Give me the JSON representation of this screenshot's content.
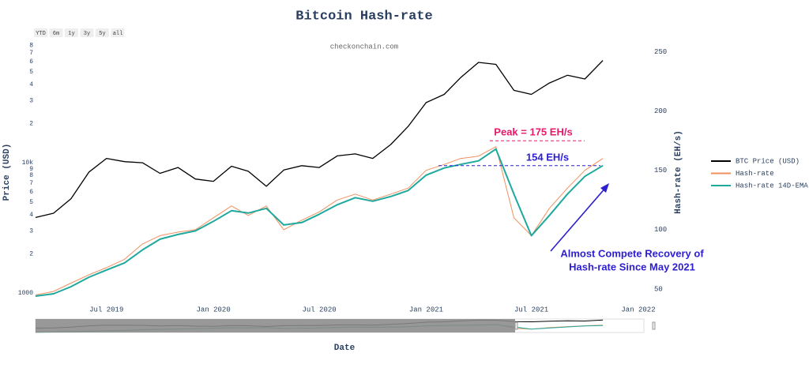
{
  "chart_data": {
    "type": "line",
    "title": "Bitcoin Hash-rate",
    "subtitle": "checkonchain.com",
    "range_buttons": [
      "YTD",
      "6m",
      "1y",
      "3y",
      "5y",
      "all"
    ],
    "x_label": "Date",
    "y_label": "Price (USD)",
    "y2_label": "Hash-rate (EH/s)",
    "ylog": true,
    "grid": false,
    "legend": "right",
    "x": [
      "2019-03",
      "2019-04",
      "2019-05",
      "2019-06",
      "2019-07",
      "2019-08",
      "2019-09",
      "2019-10",
      "2019-11",
      "2019-12",
      "2020-01",
      "2020-02",
      "2020-03",
      "2020-04",
      "2020-05",
      "2020-06",
      "2020-07",
      "2020-08",
      "2020-09",
      "2020-10",
      "2020-11",
      "2020-12",
      "2021-01",
      "2021-02",
      "2021-03",
      "2021-04",
      "2021-05",
      "2021-06",
      "2021-07",
      "2021-08",
      "2021-09",
      "2021-10",
      "2021-11"
    ],
    "series": [
      {
        "name": "BTC Price (USD)",
        "color": "#000000",
        "values": [
          3800,
          4100,
          5300,
          8500,
          10800,
          10200,
          10000,
          8300,
          9200,
          7500,
          7200,
          9400,
          8600,
          6600,
          8800,
          9500,
          9200,
          11300,
          11700,
          10800,
          13800,
          19000,
          29000,
          33500,
          45000,
          59000,
          57000,
          36000,
          33500,
          41000,
          47000,
          44000,
          61000
        ]
      },
      {
        "name": "Hash-rate",
        "color": "#f0905e",
        "axis": "y2",
        "values": [
          45,
          48,
          55,
          62,
          68,
          75,
          88,
          95,
          98,
          100,
          110,
          120,
          112,
          120,
          100,
          108,
          115,
          125,
          130,
          125,
          130,
          135,
          150,
          155,
          160,
          162,
          170,
          110,
          95,
          118,
          135,
          150,
          160
        ]
      },
      {
        "name": "Hash-rate 14D-EMA",
        "color": "#1fa99d",
        "axis": "y2",
        "values": [
          44,
          46,
          52,
          60,
          66,
          72,
          83,
          92,
          96,
          99,
          107,
          116,
          114,
          118,
          104,
          106,
          113,
          121,
          127,
          124,
          128,
          133,
          146,
          152,
          155,
          158,
          168,
          130,
          95,
          112,
          130,
          145,
          154
        ]
      }
    ],
    "xlim": [
      "2019-03",
      "2022-01"
    ],
    "xticks": [
      {
        "value": "2019-07",
        "label": "Jul 2019"
      },
      {
        "value": "2020-01",
        "label": "Jan 2020"
      },
      {
        "value": "2020-07",
        "label": "Jul 2020"
      },
      {
        "value": "2021-01",
        "label": "Jan 2021"
      },
      {
        "value": "2021-07",
        "label": "Jul 2021"
      },
      {
        "value": "2022-01",
        "label": "Jan 2022"
      }
    ],
    "ylim": [
      870,
      86000
    ],
    "yticks": [
      1000,
      {
        "value": 2000,
        "label": "2"
      },
      {
        "value": 3000,
        "label": "3"
      },
      {
        "value": 4000,
        "label": "4"
      },
      {
        "value": 5000,
        "label": "5"
      },
      {
        "value": 6000,
        "label": "6"
      },
      {
        "value": 7000,
        "label": "7"
      },
      {
        "value": 8000,
        "label": "8"
      },
      {
        "value": 9000,
        "label": "9"
      },
      {
        "value": 10000,
        "label": "10k"
      },
      {
        "value": 20000,
        "label": "2"
      },
      {
        "value": 30000,
        "label": "3"
      },
      {
        "value": 40000,
        "label": "4"
      },
      {
        "value": 50000,
        "label": "5"
      },
      {
        "value": 60000,
        "label": "6"
      },
      {
        "value": 70000,
        "label": "7"
      },
      {
        "value": 80000,
        "label": "8"
      }
    ],
    "y2lim": [
      40,
      259
    ],
    "y2ticks": [
      50,
      100,
      150,
      200,
      250
    ],
    "reference_lines": [
      {
        "axis": "y2",
        "value": 175,
        "label": "Peak = 175 EH/s",
        "color": "#e8196b"
      },
      {
        "axis": "y2",
        "value": 154,
        "label": "154 EH/s",
        "color": "#2d1fd1"
      }
    ],
    "annotation": {
      "lines": [
        "Almost Compete Recovery of",
        "Hash-rate Since May 2021"
      ],
      "color": "#2d1fd1"
    }
  }
}
